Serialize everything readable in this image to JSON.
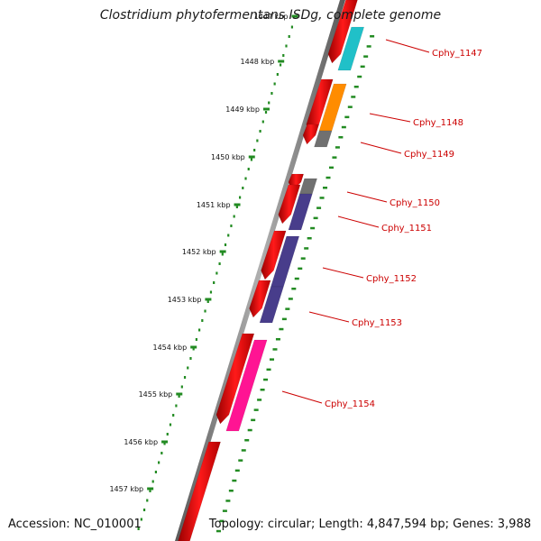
{
  "title": "Clostridium phytofermentans ISDg, complete genome",
  "footer": {
    "accession": "Accession: NC_010001",
    "summary": "Topology: circular; Length: 4,847,594 bp; Genes: 3,988"
  },
  "scale": {
    "ticks": [
      "1447 kbp",
      "1448 kbp",
      "1449 kbp",
      "1450 kbp",
      "1451 kbp",
      "1452 kbp",
      "1453 kbp",
      "1454 kbp",
      "1455 kbp",
      "1456 kbp",
      "1457 kbp"
    ]
  },
  "colors": {
    "backbone": "#808080",
    "ruler_dots": "#228b22",
    "cds": "#ff0000",
    "label": "#cc0000"
  },
  "genes": [
    {
      "label": "Cphy_1147",
      "color": "#20c0c8"
    },
    {
      "label": "Cphy_1148",
      "color": "#ff8c00"
    },
    {
      "label": "Cphy_1149",
      "color": "#707070"
    },
    {
      "label": "Cphy_1150",
      "color": "#707070"
    },
    {
      "label": "Cphy_1151",
      "color": "#483d8b"
    },
    {
      "label": "Cphy_1152",
      "color": "#483d8b"
    },
    {
      "label": "Cphy_1153",
      "color": "#483d8b"
    },
    {
      "label": "Cphy_1154",
      "color": "#ff1493"
    }
  ]
}
